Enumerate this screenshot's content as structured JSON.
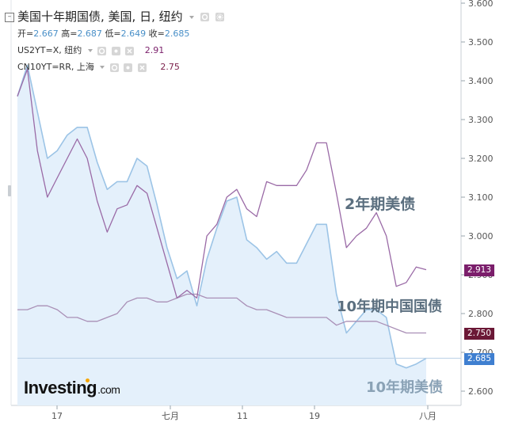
{
  "header": {
    "title": "美国十年期国债, 美国, 日, 纽约",
    "ohlc": [
      {
        "label": "开=",
        "value": "2.667"
      },
      {
        "label": "高=",
        "value": "2.687"
      },
      {
        "label": "低=",
        "value": "2.649"
      },
      {
        "label": "收=",
        "value": "2.685"
      }
    ]
  },
  "overlays": [
    {
      "name": "US2YT=X, 纽约",
      "value": "2.91"
    },
    {
      "name": "CN10YT=RR, 上海",
      "value": "2.75"
    }
  ],
  "price_tags": [
    {
      "text": "2.913",
      "color": "#7b1e6b"
    },
    {
      "text": "2.750",
      "color": "#6b1836"
    },
    {
      "text": "2.685",
      "color": "#3f7fd0"
    }
  ],
  "annotations": {
    "us2y": "2年期美债",
    "cn10y": "10年期中国国债",
    "us10y": "10年期美债"
  },
  "logo": {
    "main": "Investing",
    "suffix": ".com"
  },
  "colors": {
    "us10y_line": "#9cc4e6",
    "us10y_fill": "#e4f0fb",
    "us2y_line": "#9a6aa6",
    "cn10y_line": "#a98fb6",
    "grid": "#dde3e8",
    "axis_text": "#555555"
  },
  "chart_data": {
    "type": "line",
    "x_ticks": [
      "17",
      "七月",
      "11",
      "19",
      "八月"
    ],
    "ylim": [
      2.57,
      3.6
    ],
    "y_ticks": [
      "2.600",
      "2.700",
      "2.800",
      "2.900",
      "3.000",
      "3.100",
      "3.200",
      "3.300",
      "3.400",
      "3.500",
      "3.600"
    ],
    "series": [
      {
        "name": "美国十年期国债",
        "style": "area",
        "values": [
          3.36,
          3.44,
          3.32,
          3.2,
          3.22,
          3.26,
          3.28,
          3.28,
          3.19,
          3.12,
          3.14,
          3.14,
          3.2,
          3.18,
          3.08,
          2.97,
          2.89,
          2.91,
          2.82,
          2.94,
          3.02,
          3.09,
          3.1,
          2.99,
          2.97,
          2.94,
          2.96,
          2.93,
          2.93,
          2.98,
          3.03,
          3.03,
          2.85,
          2.75,
          2.78,
          2.81,
          2.81,
          2.79,
          2.67,
          2.66,
          2.67,
          2.685
        ]
      },
      {
        "name": "US2YT=X",
        "style": "line",
        "values": [
          3.36,
          3.43,
          3.22,
          3.1,
          3.15,
          3.2,
          3.25,
          3.2,
          3.09,
          3.01,
          3.07,
          3.08,
          3.13,
          3.11,
          3.02,
          2.93,
          2.84,
          2.86,
          2.84,
          3.0,
          3.03,
          3.1,
          3.12,
          3.07,
          3.05,
          3.14,
          3.13,
          3.13,
          3.13,
          3.17,
          3.24,
          3.24,
          3.11,
          2.97,
          3.0,
          3.02,
          3.06,
          3.0,
          2.87,
          2.88,
          2.92,
          2.913
        ]
      },
      {
        "name": "CN10YT=RR",
        "style": "line",
        "values": [
          2.81,
          2.81,
          2.82,
          2.82,
          2.81,
          2.79,
          2.79,
          2.78,
          2.78,
          2.79,
          2.8,
          2.83,
          2.84,
          2.84,
          2.83,
          2.83,
          2.84,
          2.85,
          2.85,
          2.84,
          2.84,
          2.84,
          2.84,
          2.82,
          2.81,
          2.81,
          2.8,
          2.79,
          2.79,
          2.79,
          2.79,
          2.79,
          2.77,
          2.78,
          2.78,
          2.78,
          2.78,
          2.77,
          2.76,
          2.75,
          2.75,
          2.75
        ]
      }
    ],
    "last_price_line": 2.685
  }
}
